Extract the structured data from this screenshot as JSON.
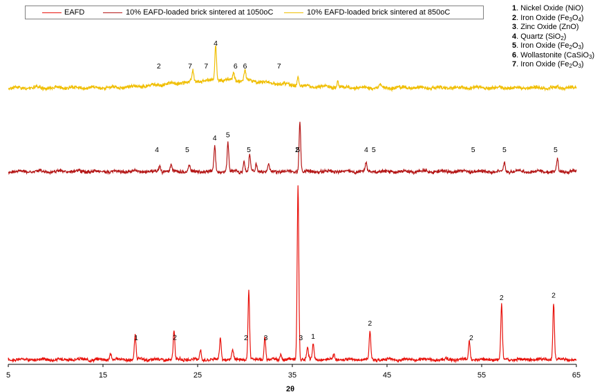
{
  "chart_data": {
    "type": "line",
    "xlabel": "2θ",
    "xlim": [
      5,
      65
    ],
    "x_ticks": [
      "5",
      "15",
      "25",
      "35",
      "45",
      "55",
      "65"
    ],
    "grid": false,
    "legend_placement": "top",
    "series": [
      {
        "name": "EAFD",
        "color": "#e8120c",
        "baseline": 0,
        "peaks": [
          [
            15.8,
            6
          ],
          [
            18.4,
            20
          ],
          [
            22.5,
            24
          ],
          [
            25.3,
            8
          ],
          [
            27.4,
            19
          ],
          [
            28.7,
            8
          ],
          [
            30.4,
            58
          ],
          [
            32.1,
            20
          ],
          [
            33.8,
            5
          ],
          [
            35.6,
            148
          ],
          [
            36.6,
            10
          ],
          [
            37.2,
            13
          ],
          [
            39.4,
            5
          ],
          [
            43.2,
            24
          ],
          [
            53.7,
            15
          ],
          [
            57.1,
            46
          ],
          [
            62.6,
            48
          ]
        ]
      },
      {
        "name": "10% EAFD-loaded brick sintered at 1050oC",
        "color": "#b41616",
        "baseline": 0,
        "peaks": [
          [
            21.0,
            5
          ],
          [
            22.2,
            6
          ],
          [
            24.1,
            6
          ],
          [
            26.8,
            23
          ],
          [
            28.2,
            26
          ],
          [
            29.9,
            10
          ],
          [
            30.5,
            15
          ],
          [
            31.2,
            7
          ],
          [
            32.5,
            6
          ],
          [
            35.8,
            45
          ],
          [
            42.8,
            7
          ],
          [
            57.4,
            8
          ],
          [
            63.0,
            11
          ]
        ]
      },
      {
        "name": "10% EAFD-loaded brick sintered at 850oC",
        "color": "#f0be00",
        "baseline": 0,
        "peaks": [
          [
            24.5,
            8
          ],
          [
            26.9,
            28
          ],
          [
            28.8,
            6
          ],
          [
            30.0,
            8
          ],
          [
            35.6,
            7
          ],
          [
            39.8,
            4
          ],
          [
            44.3,
            3
          ]
        ]
      }
    ],
    "peak_labels": [
      {
        "series": 2,
        "x": 20.9,
        "text": "2"
      },
      {
        "series": 2,
        "x": 24.2,
        "text": "7"
      },
      {
        "series": 2,
        "x": 25.9,
        "text": "7"
      },
      {
        "series": 2,
        "x": 26.9,
        "text": "4"
      },
      {
        "series": 2,
        "x": 29.0,
        "text": "6"
      },
      {
        "series": 2,
        "x": 30.0,
        "text": "6"
      },
      {
        "series": 2,
        "x": 33.6,
        "text": "7"
      },
      {
        "series": 1,
        "x": 20.7,
        "text": "4"
      },
      {
        "series": 1,
        "x": 23.9,
        "text": "5"
      },
      {
        "series": 1,
        "x": 26.8,
        "text": "4"
      },
      {
        "series": 1,
        "x": 28.2,
        "text": "5"
      },
      {
        "series": 1,
        "x": 30.4,
        "text": "5"
      },
      {
        "series": 1,
        "x": 35.6,
        "text": "5"
      },
      {
        "series": 1,
        "x": 35.5,
        "text": "2"
      },
      {
        "series": 1,
        "x": 42.8,
        "text": "4"
      },
      {
        "series": 1,
        "x": 43.6,
        "text": "5"
      },
      {
        "series": 1,
        "x": 54.1,
        "text": "5"
      },
      {
        "series": 1,
        "x": 57.4,
        "text": "5"
      },
      {
        "series": 1,
        "x": 62.8,
        "text": "5"
      },
      {
        "series": 0,
        "x": 18.5,
        "text": "1"
      },
      {
        "series": 0,
        "x": 22.6,
        "text": "2"
      },
      {
        "series": 0,
        "x": 30.1,
        "text": "2"
      },
      {
        "series": 0,
        "x": 32.2,
        "text": "3"
      },
      {
        "series": 0,
        "x": 35.9,
        "text": "3"
      },
      {
        "series": 0,
        "x": 37.2,
        "text": "1"
      },
      {
        "series": 0,
        "x": 43.2,
        "text": "2"
      },
      {
        "series": 0,
        "x": 53.9,
        "text": "2"
      },
      {
        "series": 0,
        "x": 57.1,
        "text": "2"
      },
      {
        "series": 0,
        "x": 62.6,
        "text": "2"
      }
    ]
  },
  "legend": {
    "items": [
      {
        "label": "EAFD",
        "color": "#e8120c"
      },
      {
        "label": "10% EAFD-loaded brick sintered at 1050oC",
        "color": "#b41616"
      },
      {
        "label": "10% EAFD-loaded brick sintered at 850oC",
        "color": "#f0be00"
      }
    ]
  },
  "phase_legend": [
    {
      "num": "1",
      "name": "Nickel Oxide (NiO)"
    },
    {
      "num": "2",
      "name": "Iron Oxide (Fe3O4)"
    },
    {
      "num": "3",
      "name": "Zinc Oxide (ZnO)"
    },
    {
      "num": "4",
      "name": "Quartz  (SiO2)"
    },
    {
      "num": "5",
      "name": "Iron Oxide (Fe2O3)"
    },
    {
      "num": "6",
      "name": "Wollastonite (CaSiO3)"
    },
    {
      "num": "7",
      "name": "Iron Oxide (Fe2O3)"
    }
  ]
}
